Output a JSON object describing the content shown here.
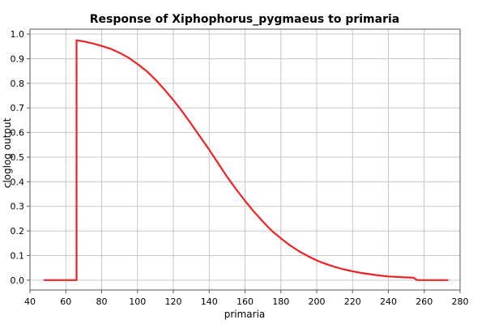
{
  "chart_data": {
    "type": "line",
    "title": "Response of Xiphophorus_pygmaeus to primaria",
    "xlabel": "primaria",
    "ylabel": "cloglog output",
    "xlim": [
      40,
      280
    ],
    "ylim": [
      -0.04,
      1.02
    ],
    "x_ticks": [
      40,
      60,
      80,
      100,
      120,
      140,
      160,
      180,
      200,
      220,
      240,
      260,
      280
    ],
    "y_ticks": [
      0.0,
      0.1,
      0.2,
      0.3,
      0.4,
      0.5,
      0.6,
      0.7,
      0.8,
      0.9,
      1.0
    ],
    "x_tick_labels": [
      "40",
      "60",
      "80",
      "100",
      "120",
      "140",
      "160",
      "180",
      "200",
      "220",
      "240",
      "260",
      "280"
    ],
    "y_tick_labels": [
      "0.0",
      "0.1",
      "0.2",
      "0.3",
      "0.4",
      "0.5",
      "0.6",
      "0.7",
      "0.8",
      "0.9",
      "1.0"
    ],
    "grid": true,
    "series": [
      {
        "color": "#ee2222",
        "points": [
          [
            48,
            0.0
          ],
          [
            66,
            0.0
          ],
          [
            66,
            0.975
          ],
          [
            70,
            0.97
          ],
          [
            75,
            0.962
          ],
          [
            80,
            0.952
          ],
          [
            85,
            0.94
          ],
          [
            90,
            0.924
          ],
          [
            95,
            0.904
          ],
          [
            100,
            0.878
          ],
          [
            105,
            0.85
          ],
          [
            110,
            0.815
          ],
          [
            115,
            0.775
          ],
          [
            120,
            0.732
          ],
          [
            125,
            0.685
          ],
          [
            130,
            0.635
          ],
          [
            135,
            0.582
          ],
          [
            140,
            0.53
          ],
          [
            145,
            0.475
          ],
          [
            150,
            0.42
          ],
          [
            155,
            0.37
          ],
          [
            160,
            0.322
          ],
          [
            165,
            0.278
          ],
          [
            170,
            0.238
          ],
          [
            175,
            0.2
          ],
          [
            180,
            0.17
          ],
          [
            185,
            0.142
          ],
          [
            190,
            0.118
          ],
          [
            195,
            0.098
          ],
          [
            200,
            0.08
          ],
          [
            205,
            0.066
          ],
          [
            210,
            0.054
          ],
          [
            215,
            0.044
          ],
          [
            220,
            0.036
          ],
          [
            225,
            0.029
          ],
          [
            230,
            0.024
          ],
          [
            235,
            0.019
          ],
          [
            240,
            0.015
          ],
          [
            245,
            0.013
          ],
          [
            250,
            0.011
          ],
          [
            254,
            0.01
          ],
          [
            256,
            0.0
          ],
          [
            273,
            0.0
          ]
        ]
      }
    ]
  }
}
